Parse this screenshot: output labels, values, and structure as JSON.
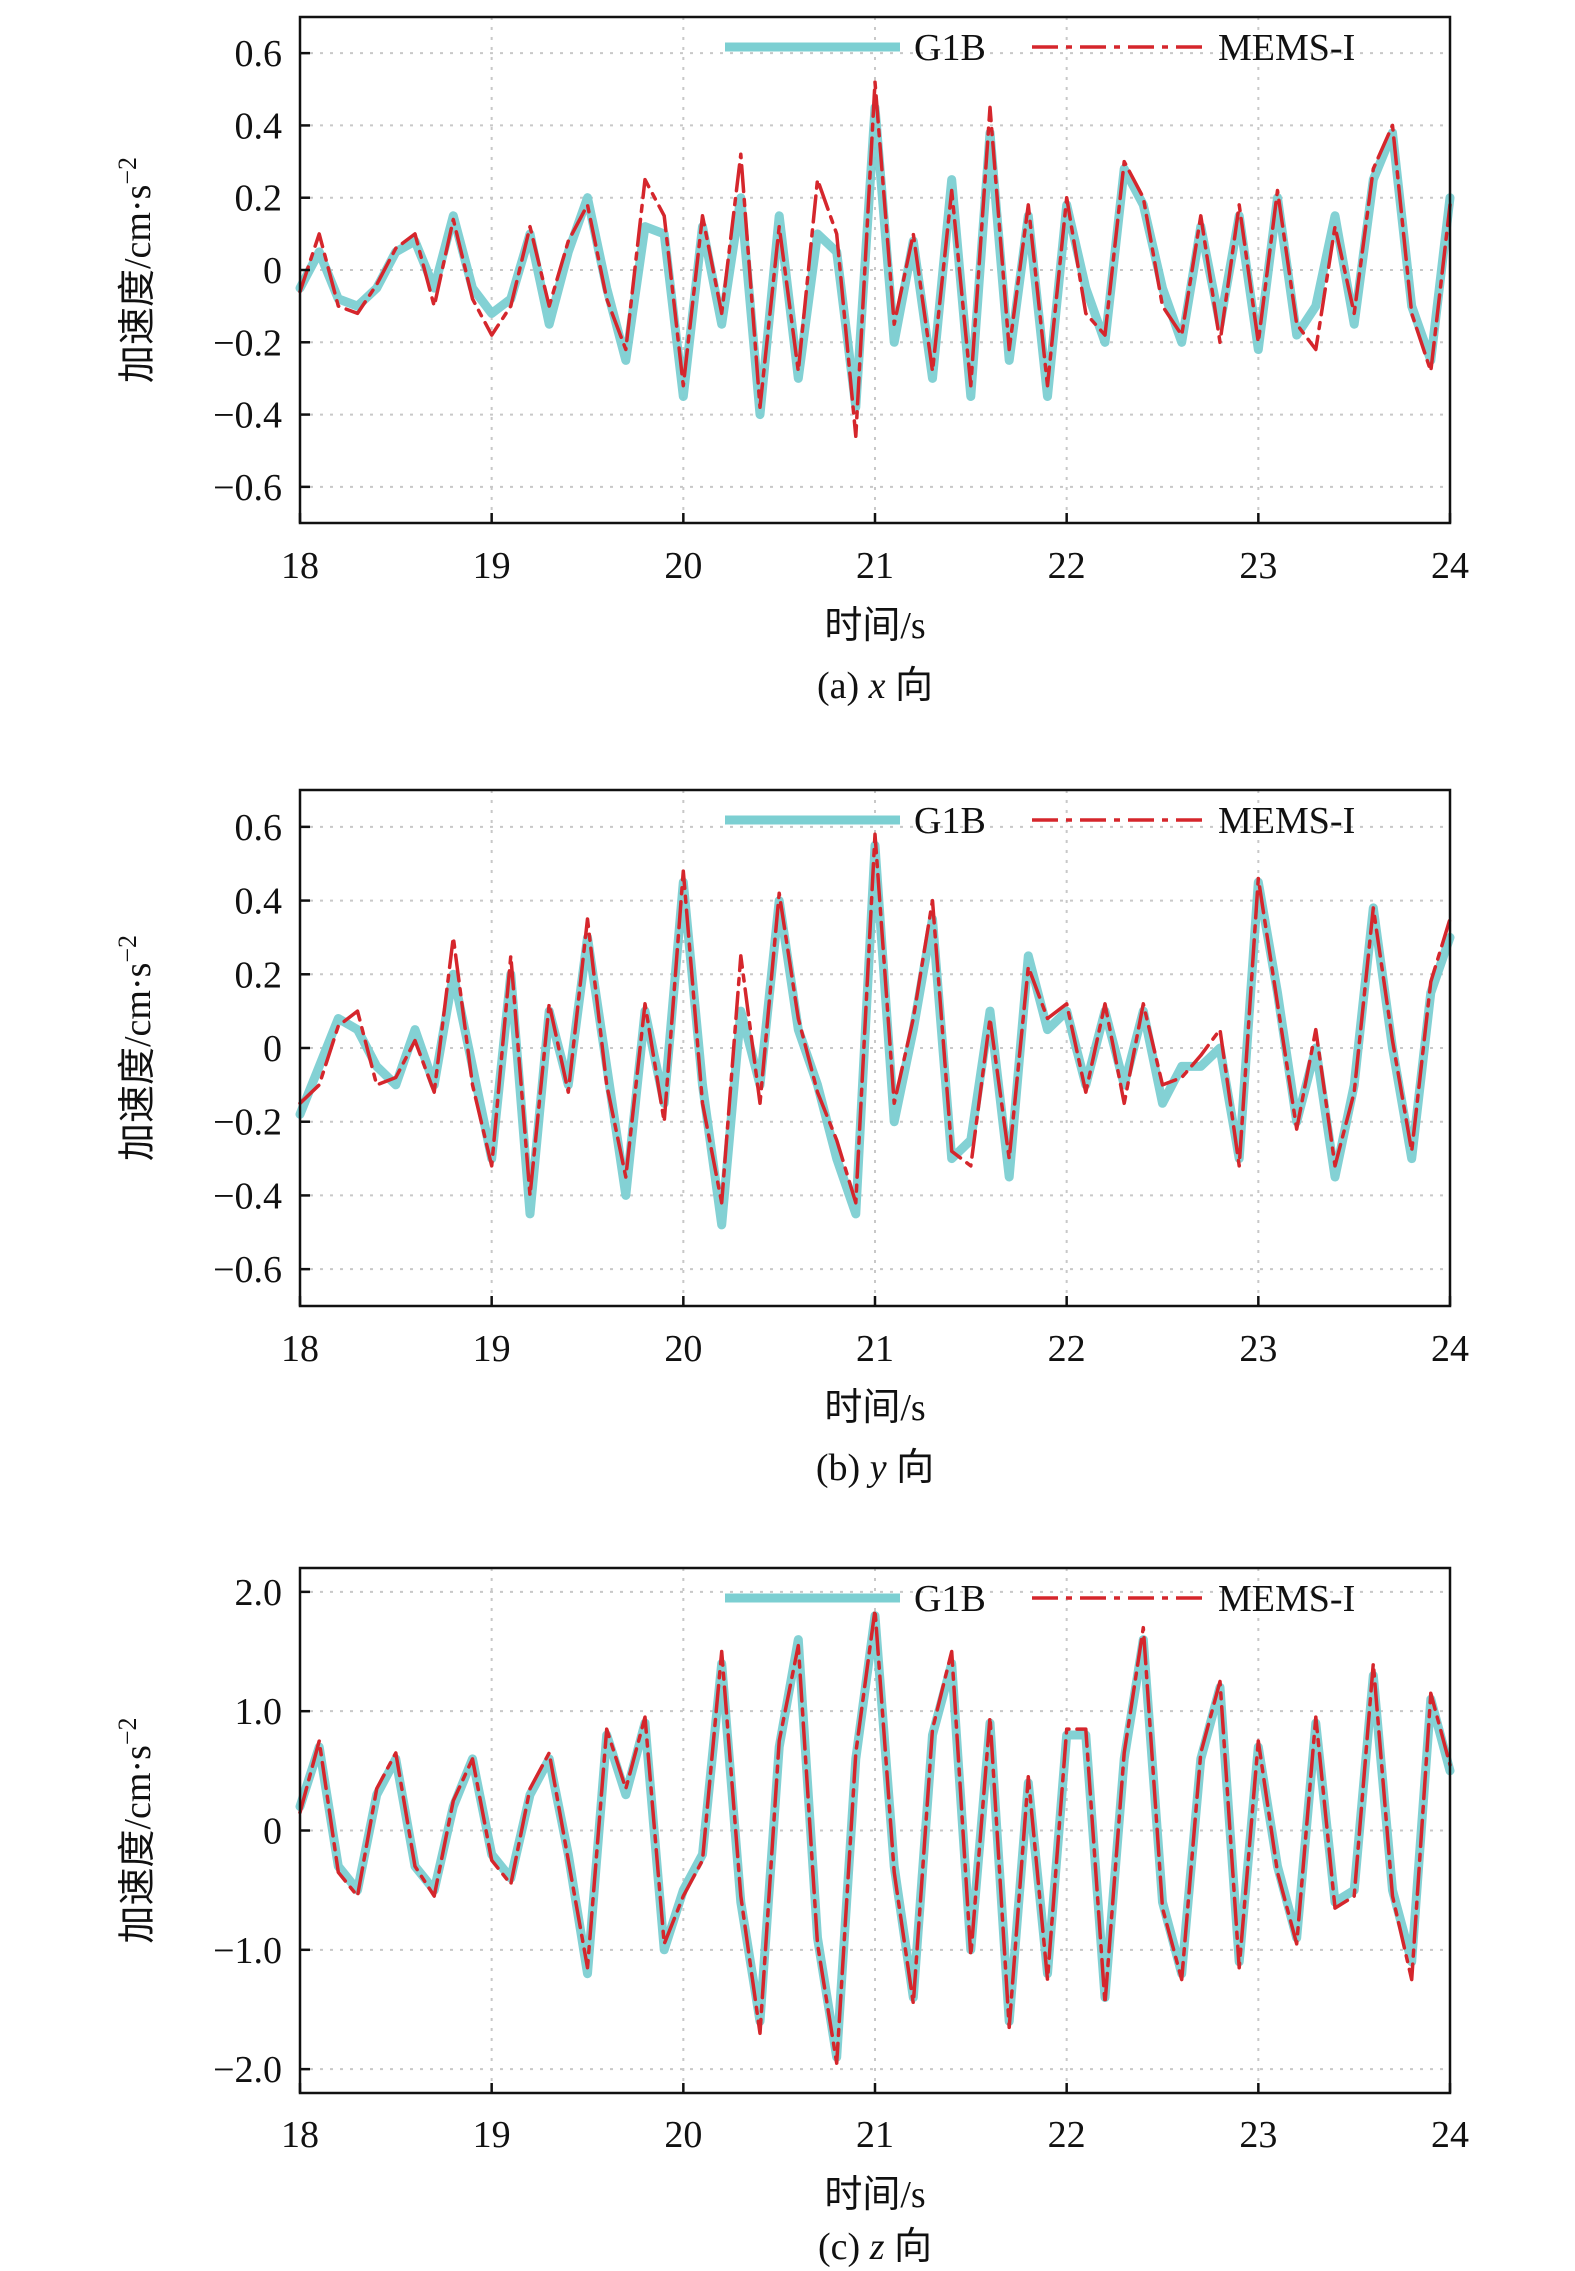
{
  "figure": {
    "colors": {
      "G1B": "#7ccfd2",
      "MEMS-I": "#d5262c"
    }
  },
  "chart_data": [
    {
      "type": "line",
      "caption": "(a) x 向",
      "caption_prefix": "(a)",
      "caption_var": "x",
      "caption_suffix": "向",
      "xlabel": "时间/s",
      "ylabel": "加速度/cm·s",
      "ylabel_exp": "−2",
      "xlim": [
        18,
        24
      ],
      "ylim": [
        -0.7,
        0.7
      ],
      "xticks": [
        18,
        19,
        20,
        21,
        22,
        23,
        24
      ],
      "xtick_labels": [
        "18",
        "19",
        "20",
        "21",
        "22",
        "23",
        "24"
      ],
      "yticks": [
        -0.6,
        -0.4,
        -0.2,
        0,
        0.2,
        0.4,
        0.6
      ],
      "ytick_labels": [
        "−0.6",
        "−0.4",
        "−0.2",
        "0",
        "0.2",
        "0.4",
        "0.6"
      ],
      "grid": true,
      "legend": "top-right",
      "series": [
        {
          "name": "G1B",
          "style": "solid",
          "color": "#7ccfd2",
          "x": [
            18.0,
            18.1,
            18.2,
            18.3,
            18.4,
            18.5,
            18.6,
            18.7,
            18.8,
            18.9,
            19.0,
            19.1,
            19.2,
            19.3,
            19.4,
            19.5,
            19.6,
            19.7,
            19.8,
            19.9,
            20.0,
            20.1,
            20.2,
            20.3,
            20.4,
            20.5,
            20.6,
            20.7,
            20.8,
            20.9,
            21.0,
            21.1,
            21.2,
            21.3,
            21.4,
            21.5,
            21.6,
            21.7,
            21.8,
            21.9,
            22.0,
            22.1,
            22.2,
            22.3,
            22.4,
            22.5,
            22.6,
            22.7,
            22.8,
            22.9,
            23.0,
            23.1,
            23.2,
            23.3,
            23.4,
            23.5,
            23.6,
            23.7,
            23.8,
            23.9,
            24.0
          ],
          "y": [
            -0.05,
            0.05,
            -0.08,
            -0.1,
            -0.05,
            0.05,
            0.08,
            -0.05,
            0.15,
            -0.05,
            -0.12,
            -0.08,
            0.1,
            -0.15,
            0.05,
            0.2,
            -0.05,
            -0.25,
            0.12,
            0.1,
            -0.35,
            0.12,
            -0.15,
            0.2,
            -0.4,
            0.15,
            -0.3,
            0.1,
            0.05,
            -0.38,
            0.45,
            -0.2,
            0.08,
            -0.3,
            0.25,
            -0.35,
            0.38,
            -0.25,
            0.15,
            -0.35,
            0.18,
            -0.05,
            -0.2,
            0.28,
            0.18,
            -0.05,
            -0.2,
            0.12,
            -0.15,
            0.15,
            -0.22,
            0.2,
            -0.18,
            -0.1,
            0.15,
            -0.15,
            0.25,
            0.38,
            -0.1,
            -0.25,
            0.2
          ]
        },
        {
          "name": "MEMS-I",
          "style": "dashdot",
          "color": "#d5262c",
          "x": [
            18.0,
            18.1,
            18.2,
            18.3,
            18.4,
            18.5,
            18.6,
            18.7,
            18.8,
            18.9,
            19.0,
            19.1,
            19.2,
            19.3,
            19.4,
            19.5,
            19.6,
            19.7,
            19.8,
            19.9,
            20.0,
            20.1,
            20.2,
            20.3,
            20.4,
            20.5,
            20.6,
            20.7,
            20.8,
            20.9,
            21.0,
            21.1,
            21.2,
            21.3,
            21.4,
            21.5,
            21.6,
            21.7,
            21.8,
            21.9,
            22.0,
            22.1,
            22.2,
            22.3,
            22.4,
            22.5,
            22.6,
            22.7,
            22.8,
            22.9,
            23.0,
            23.1,
            23.2,
            23.3,
            23.4,
            23.5,
            23.6,
            23.7,
            23.8,
            23.9,
            24.0
          ],
          "y": [
            -0.06,
            0.1,
            -0.1,
            -0.12,
            -0.04,
            0.06,
            0.1,
            -0.1,
            0.14,
            -0.08,
            -0.18,
            -0.1,
            0.12,
            -0.1,
            0.08,
            0.18,
            -0.08,
            -0.22,
            0.25,
            0.15,
            -0.32,
            0.15,
            -0.12,
            0.32,
            -0.38,
            0.12,
            -0.28,
            0.25,
            0.1,
            -0.46,
            0.52,
            -0.15,
            0.1,
            -0.28,
            0.22,
            -0.32,
            0.45,
            -0.22,
            0.18,
            -0.32,
            0.2,
            -0.12,
            -0.18,
            0.3,
            0.2,
            -0.1,
            -0.18,
            0.15,
            -0.2,
            0.18,
            -0.2,
            0.22,
            -0.15,
            -0.22,
            0.12,
            -0.12,
            0.28,
            0.4,
            -0.12,
            -0.28,
            0.18
          ]
        }
      ]
    },
    {
      "type": "line",
      "caption": "(b) y 向",
      "caption_prefix": "(b)",
      "caption_var": "y",
      "caption_suffix": "向",
      "xlabel": "时间/s",
      "ylabel": "加速度/cm·s",
      "ylabel_exp": "−2",
      "xlim": [
        18,
        24
      ],
      "ylim": [
        -0.7,
        0.7
      ],
      "xticks": [
        18,
        19,
        20,
        21,
        22,
        23,
        24
      ],
      "xtick_labels": [
        "18",
        "19",
        "20",
        "21",
        "22",
        "23",
        "24"
      ],
      "yticks": [
        -0.6,
        -0.4,
        -0.2,
        0,
        0.2,
        0.4,
        0.6
      ],
      "ytick_labels": [
        "−0.6",
        "−0.4",
        "−0.2",
        "0",
        "0.2",
        "0.4",
        "0.6"
      ],
      "grid": true,
      "legend": "top-right",
      "series": [
        {
          "name": "G1B",
          "style": "solid",
          "color": "#7ccfd2",
          "x": [
            18.0,
            18.1,
            18.2,
            18.3,
            18.4,
            18.5,
            18.6,
            18.7,
            18.8,
            18.9,
            19.0,
            19.1,
            19.2,
            19.3,
            19.4,
            19.5,
            19.6,
            19.7,
            19.8,
            19.9,
            20.0,
            20.1,
            20.2,
            20.3,
            20.4,
            20.5,
            20.6,
            20.7,
            20.8,
            20.9,
            21.0,
            21.1,
            21.2,
            21.3,
            21.4,
            21.5,
            21.6,
            21.7,
            21.8,
            21.9,
            22.0,
            22.1,
            22.2,
            22.3,
            22.4,
            22.5,
            22.6,
            22.7,
            22.8,
            22.9,
            23.0,
            23.1,
            23.2,
            23.3,
            23.4,
            23.5,
            23.6,
            23.7,
            23.8,
            23.9,
            24.0
          ],
          "y": [
            -0.18,
            -0.05,
            0.08,
            0.05,
            -0.05,
            -0.1,
            0.05,
            -0.1,
            0.2,
            -0.05,
            -0.3,
            0.2,
            -0.45,
            0.1,
            -0.1,
            0.3,
            -0.05,
            -0.4,
            0.1,
            -0.15,
            0.45,
            -0.1,
            -0.48,
            0.1,
            -0.1,
            0.4,
            0.05,
            -0.1,
            -0.3,
            -0.45,
            0.55,
            -0.2,
            0.05,
            0.35,
            -0.3,
            -0.25,
            0.1,
            -0.35,
            0.25,
            0.05,
            0.1,
            -0.1,
            0.1,
            -0.1,
            0.1,
            -0.15,
            -0.05,
            -0.05,
            0.0,
            -0.3,
            0.45,
            0.15,
            -0.2,
            0.0,
            -0.35,
            -0.1,
            0.38,
            0.0,
            -0.3,
            0.15,
            0.3
          ]
        },
        {
          "name": "MEMS-I",
          "style": "dashdot",
          "color": "#d5262c",
          "x": [
            18.0,
            18.1,
            18.2,
            18.3,
            18.4,
            18.5,
            18.6,
            18.7,
            18.8,
            18.9,
            19.0,
            19.1,
            19.2,
            19.3,
            19.4,
            19.5,
            19.6,
            19.7,
            19.8,
            19.9,
            20.0,
            20.1,
            20.2,
            20.3,
            20.4,
            20.5,
            20.6,
            20.7,
            20.8,
            20.9,
            21.0,
            21.1,
            21.2,
            21.3,
            21.4,
            21.5,
            21.6,
            21.7,
            21.8,
            21.9,
            22.0,
            22.1,
            22.2,
            22.3,
            22.4,
            22.5,
            22.6,
            22.7,
            22.8,
            22.9,
            23.0,
            23.1,
            23.2,
            23.3,
            23.4,
            23.5,
            23.6,
            23.7,
            23.8,
            23.9,
            24.0
          ],
          "y": [
            -0.15,
            -0.1,
            0.06,
            0.1,
            -0.1,
            -0.08,
            0.02,
            -0.12,
            0.3,
            -0.1,
            -0.32,
            0.25,
            -0.4,
            0.12,
            -0.12,
            0.35,
            -0.1,
            -0.35,
            0.12,
            -0.2,
            0.48,
            -0.15,
            -0.42,
            0.25,
            -0.15,
            0.42,
            0.08,
            -0.12,
            -0.25,
            -0.42,
            0.58,
            -0.15,
            0.08,
            0.4,
            -0.28,
            -0.32,
            0.08,
            -0.3,
            0.22,
            0.08,
            0.12,
            -0.12,
            0.12,
            -0.15,
            0.12,
            -0.1,
            -0.08,
            -0.02,
            0.05,
            -0.32,
            0.46,
            0.12,
            -0.22,
            0.05,
            -0.32,
            -0.12,
            0.38,
            0.02,
            -0.28,
            0.18,
            0.35
          ]
        }
      ]
    },
    {
      "type": "line",
      "caption": "(c) z 向",
      "caption_prefix": "(c)",
      "caption_var": "z",
      "caption_suffix": "向",
      "xlabel": "时间/s",
      "ylabel": "加速度/cm·s",
      "ylabel_exp": "−2",
      "xlim": [
        18,
        24
      ],
      "ylim": [
        -2.2,
        2.2
      ],
      "xticks": [
        18,
        19,
        20,
        21,
        22,
        23,
        24
      ],
      "xtick_labels": [
        "18",
        "19",
        "20",
        "21",
        "22",
        "23",
        "24"
      ],
      "yticks": [
        -2.0,
        -1.0,
        0,
        1.0,
        2.0
      ],
      "ytick_labels": [
        "−2.0",
        "−1.0",
        "0",
        "1.0",
        "2.0"
      ],
      "grid": true,
      "legend": "top-right",
      "series": [
        {
          "name": "G1B",
          "style": "solid",
          "color": "#7ccfd2",
          "x": [
            18.0,
            18.1,
            18.2,
            18.3,
            18.4,
            18.5,
            18.6,
            18.7,
            18.8,
            18.9,
            19.0,
            19.1,
            19.2,
            19.3,
            19.4,
            19.5,
            19.6,
            19.7,
            19.8,
            19.9,
            20.0,
            20.1,
            20.2,
            20.3,
            20.4,
            20.5,
            20.6,
            20.7,
            20.8,
            20.9,
            21.0,
            21.1,
            21.2,
            21.3,
            21.4,
            21.5,
            21.6,
            21.7,
            21.8,
            21.9,
            22.0,
            22.1,
            22.2,
            22.3,
            22.4,
            22.5,
            22.6,
            22.7,
            22.8,
            22.9,
            23.0,
            23.1,
            23.2,
            23.3,
            23.4,
            23.5,
            23.6,
            23.7,
            23.8,
            23.9,
            24.0
          ],
          "y": [
            0.2,
            0.7,
            -0.3,
            -0.5,
            0.3,
            0.6,
            -0.3,
            -0.5,
            0.2,
            0.6,
            -0.2,
            -0.4,
            0.3,
            0.6,
            -0.2,
            -1.2,
            0.8,
            0.3,
            0.9,
            -1.0,
            -0.5,
            -0.2,
            1.4,
            -0.6,
            -1.6,
            0.7,
            1.6,
            -0.9,
            -1.9,
            0.6,
            1.8,
            -0.3,
            -1.4,
            0.8,
            1.4,
            -1.0,
            0.9,
            -1.6,
            0.4,
            -1.2,
            0.8,
            0.8,
            -1.4,
            0.6,
            1.6,
            -0.6,
            -1.2,
            0.6,
            1.2,
            -1.1,
            0.7,
            -0.3,
            -0.9,
            0.9,
            -0.6,
            -0.5,
            1.3,
            -0.5,
            -1.1,
            1.1,
            0.5
          ]
        },
        {
          "name": "MEMS-I",
          "style": "dashdot",
          "color": "#d5262c",
          "x": [
            18.0,
            18.1,
            18.2,
            18.3,
            18.4,
            18.5,
            18.6,
            18.7,
            18.8,
            18.9,
            19.0,
            19.1,
            19.2,
            19.3,
            19.4,
            19.5,
            19.6,
            19.7,
            19.8,
            19.9,
            20.0,
            20.1,
            20.2,
            20.3,
            20.4,
            20.5,
            20.6,
            20.7,
            20.8,
            20.9,
            21.0,
            21.1,
            21.2,
            21.3,
            21.4,
            21.5,
            21.6,
            21.7,
            21.8,
            21.9,
            22.0,
            22.1,
            22.2,
            22.3,
            22.4,
            22.5,
            22.6,
            22.7,
            22.8,
            22.9,
            23.0,
            23.1,
            23.2,
            23.3,
            23.4,
            23.5,
            23.6,
            23.7,
            23.8,
            23.9,
            24.0
          ],
          "y": [
            0.15,
            0.75,
            -0.35,
            -0.55,
            0.35,
            0.65,
            -0.3,
            -0.55,
            0.25,
            0.6,
            -0.25,
            -0.45,
            0.35,
            0.65,
            -0.25,
            -1.15,
            0.85,
            0.35,
            0.95,
            -0.95,
            -0.55,
            -0.25,
            1.5,
            -0.55,
            -1.7,
            0.75,
            1.55,
            -0.95,
            -1.95,
            0.65,
            1.85,
            -0.35,
            -1.45,
            0.85,
            1.5,
            -1.05,
            0.95,
            -1.65,
            0.45,
            -1.25,
            0.85,
            0.85,
            -1.45,
            0.65,
            1.7,
            -0.65,
            -1.25,
            0.65,
            1.25,
            -1.15,
            0.75,
            -0.35,
            -0.95,
            0.95,
            -0.65,
            -0.55,
            1.4,
            -0.55,
            -1.25,
            1.15,
            0.55
          ]
        }
      ]
    }
  ]
}
